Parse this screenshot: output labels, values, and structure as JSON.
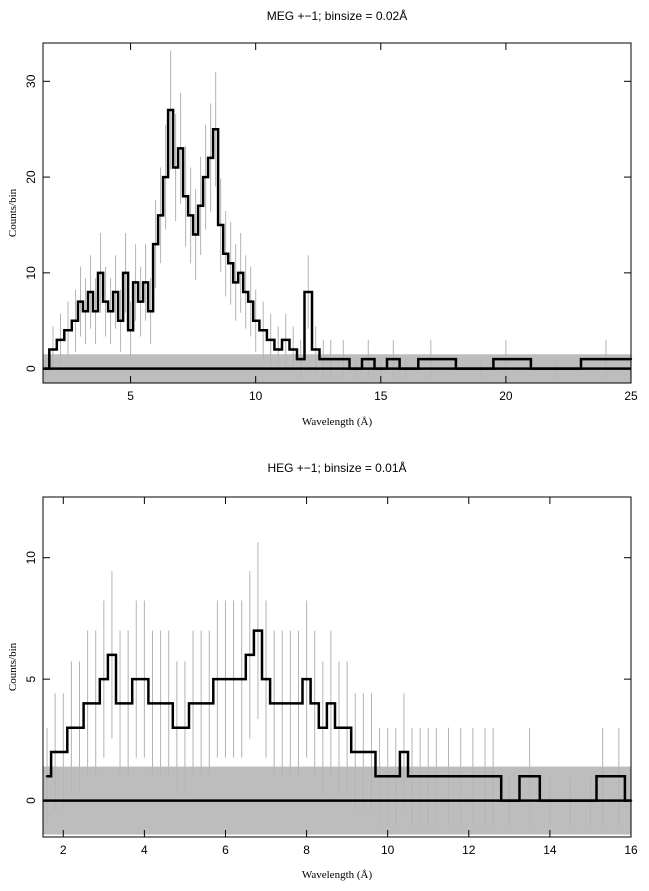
{
  "chart_data": [
    {
      "type": "line",
      "title": "MEG +−1; binsize = 0.02Å",
      "xlabel": "Wavelength (Å)",
      "ylabel": "Counts/bin",
      "xlim": [
        1.5,
        25
      ],
      "ylim": [
        -1.5,
        34
      ],
      "xticks": [
        5,
        10,
        15,
        20,
        25
      ],
      "yticks": [
        0,
        10,
        20,
        30
      ],
      "xtick_labels": [
        "5",
        "10",
        "15",
        "20",
        "25"
      ],
      "ytick_labels": [
        "0",
        "10",
        "20",
        "30"
      ],
      "grid": false,
      "background_band": [
        -1.5,
        1.5
      ],
      "colors": {
        "data": "#000000",
        "errors": "#b4b4b4",
        "band": "#bdbdbd",
        "model": "#000000"
      },
      "x": [
        1.6,
        1.9,
        2.2,
        2.5,
        2.8,
        3.0,
        3.2,
        3.4,
        3.6,
        3.8,
        4.0,
        4.2,
        4.4,
        4.6,
        4.8,
        5.0,
        5.2,
        5.4,
        5.6,
        5.8,
        6.0,
        6.2,
        6.4,
        6.6,
        6.8,
        7.0,
        7.2,
        7.4,
        7.6,
        7.8,
        8.0,
        8.2,
        8.4,
        8.6,
        8.8,
        9.0,
        9.2,
        9.4,
        9.6,
        9.8,
        10.0,
        10.3,
        10.6,
        10.9,
        11.2,
        11.5,
        11.8,
        12.1,
        12.4,
        12.7,
        13.0,
        13.5,
        14.0,
        14.5,
        15.0,
        15.5,
        16.0,
        17.0,
        19.0,
        20.0,
        22.0,
        24.0,
        25.0
      ],
      "values": [
        0,
        2,
        3,
        4,
        5,
        7,
        6,
        8,
        6,
        10,
        7,
        6,
        8,
        5,
        10,
        4,
        9,
        7,
        9,
        6,
        13,
        16,
        20,
        27,
        21,
        23,
        18,
        16,
        14,
        17,
        20,
        22,
        25,
        15,
        12,
        11,
        9,
        10,
        8,
        7,
        5,
        4,
        3,
        2,
        3,
        2,
        1,
        8,
        2,
        1,
        1,
        1,
        0,
        1,
        0,
        1,
        0,
        1,
        0,
        1,
        0,
        1,
        1
      ]
    },
    {
      "type": "line",
      "title": "HEG +−1; binsize = 0.01Å",
      "xlabel": "Wavelength (Å)",
      "ylabel": "Counts/bin",
      "xlim": [
        1.5,
        16
      ],
      "ylim": [
        -1.5,
        12.5
      ],
      "xticks": [
        2,
        4,
        6,
        8,
        10,
        12,
        14,
        16
      ],
      "yticks": [
        0,
        5,
        10
      ],
      "xtick_labels": [
        "2",
        "4",
        "6",
        "8",
        "10",
        "12",
        "14",
        "16"
      ],
      "ytick_labels": [
        "0",
        "5",
        "10"
      ],
      "grid": false,
      "background_band": [
        -1.4,
        1.4
      ],
      "colors": {
        "data": "#000000",
        "errors": "#b4b4b4",
        "band": "#bdbdbd",
        "model": "#000000"
      },
      "x": [
        1.6,
        1.8,
        2.0,
        2.2,
        2.4,
        2.6,
        2.8,
        3.0,
        3.2,
        3.4,
        3.6,
        3.8,
        4.0,
        4.2,
        4.4,
        4.6,
        4.8,
        5.0,
        5.2,
        5.4,
        5.6,
        5.8,
        6.0,
        6.2,
        6.4,
        6.6,
        6.8,
        7.0,
        7.2,
        7.4,
        7.6,
        7.8,
        8.0,
        8.2,
        8.4,
        8.6,
        8.8,
        9.0,
        9.2,
        9.4,
        9.6,
        9.8,
        10.0,
        10.2,
        10.4,
        10.6,
        10.8,
        11.0,
        11.2,
        11.5,
        11.8,
        12.1,
        12.4,
        12.6,
        13.0,
        13.5,
        14.0,
        14.5,
        15.0,
        15.3,
        15.7,
        16.0
      ],
      "values": [
        1,
        2,
        2,
        3,
        3,
        4,
        4,
        5,
        6,
        4,
        4,
        5,
        5,
        4,
        4,
        4,
        3,
        3,
        4,
        4,
        4,
        5,
        5,
        5,
        5,
        6,
        7,
        5,
        4,
        4,
        4,
        4,
        5,
        4,
        3,
        4,
        3,
        3,
        2,
        2,
        2,
        1,
        1,
        1,
        2,
        1,
        1,
        1,
        1,
        1,
        1,
        1,
        1,
        1,
        0,
        1,
        0,
        0,
        0,
        1,
        1,
        0
      ]
    }
  ]
}
